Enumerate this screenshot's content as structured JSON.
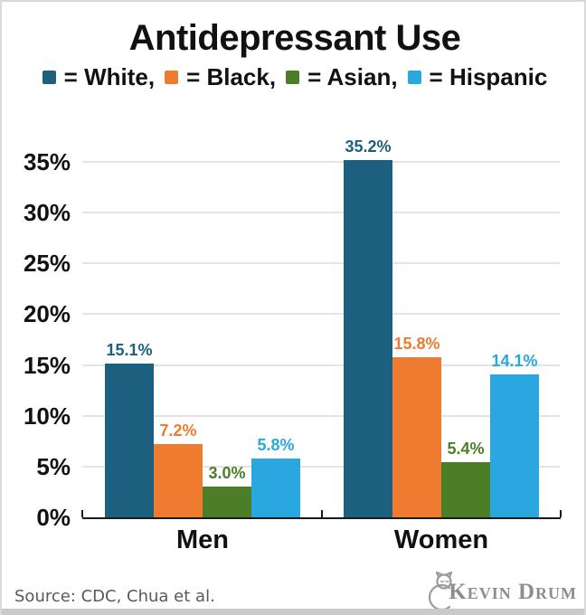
{
  "page": {
    "title": "Antidepressant Use",
    "source": "Source: CDC, Chua et al.",
    "logo_text": "Kevin Drum"
  },
  "chart_data": {
    "type": "bar",
    "title": "Antidepressant Use",
    "categories": [
      "Men",
      "Women"
    ],
    "series": [
      {
        "name": "White",
        "color": "#1d5f7e",
        "values": [
          15.1,
          35.2
        ],
        "labels": [
          "15.1%",
          "35.2%"
        ]
      },
      {
        "name": "Black",
        "color": "#ee7b30",
        "values": [
          7.2,
          15.8
        ],
        "labels": [
          "7.2%",
          "15.8%"
        ]
      },
      {
        "name": "Asian",
        "color": "#4b7e26",
        "values": [
          3.0,
          5.4
        ],
        "labels": [
          "3.0%",
          "5.4%"
        ]
      },
      {
        "name": "Hispanic",
        "color": "#29a8df",
        "values": [
          5.8,
          14.1
        ],
        "labels": [
          "5.8%",
          "14.1%"
        ]
      }
    ],
    "legend": [
      {
        "text": "= White,",
        "color": "#1d5f7e"
      },
      {
        "text": "= Black,",
        "color": "#ee7b30"
      },
      {
        "text": "= Asian,",
        "color": "#4b7e26"
      },
      {
        "text": "= Hispanic",
        "color": "#29a8df"
      }
    ],
    "y_ticks": [
      "0%",
      "5%",
      "10%",
      "15%",
      "20%",
      "25%",
      "30%",
      "35%"
    ],
    "y_tick_values": [
      0,
      5,
      10,
      15,
      20,
      25,
      30,
      35
    ],
    "ylim": [
      0,
      37
    ],
    "grid": true,
    "legend_position": "top",
    "xlabel": "",
    "ylabel": ""
  }
}
